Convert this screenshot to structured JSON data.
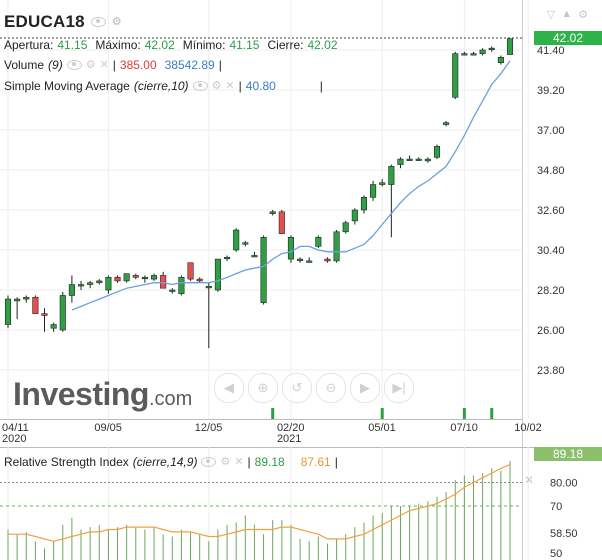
{
  "instrument": {
    "name": "EDUCA18"
  },
  "ohlc": {
    "open_label": "Apertura:",
    "open_value": "41.15",
    "high_label": "Máximo:",
    "high_value": "42.02",
    "low_label": "Mínimo:",
    "low_value": "41.15",
    "close_label": "Cierre:",
    "close_value": "42.02"
  },
  "volume": {
    "label": "Volume",
    "params": "(9)",
    "value1": "385.00",
    "value2": "38542.89"
  },
  "sma": {
    "label": "Simple Moving Average",
    "params": "(cierre,10)",
    "value": "40.80"
  },
  "rsi": {
    "label": "Relative Strength Index",
    "params": "(cierre,14,9)",
    "value1": "89.18",
    "value2": "87.61"
  },
  "price_badge": "42.02",
  "rsi_badge": "89.18",
  "y_ticks": [
    "41.40",
    "39.20",
    "37.00",
    "34.80",
    "32.60",
    "30.40",
    "28.20",
    "26.00",
    "23.80"
  ],
  "x_ticks": [
    {
      "label": "04/11",
      "sub": "2020"
    },
    {
      "label": "09/05",
      "sub": ""
    },
    {
      "label": "12/05",
      "sub": ""
    },
    {
      "label": "02/20",
      "sub": "2021"
    },
    {
      "label": "05/01",
      "sub": ""
    },
    {
      "label": "07/10",
      "sub": ""
    },
    {
      "label": "10/02",
      "sub": ""
    }
  ],
  "rsi_ticks": [
    "70",
    "58.50",
    "50"
  ],
  "rsi_top_tick": "80.00",
  "watermark": {
    "main": "Investing",
    "suffix": ".com"
  },
  "colors": {
    "up": "#2ea043",
    "down": "#e25050",
    "sma": "#6aa0e0",
    "rsi_line": "#f0a040",
    "rsi_bars": "#6aa857"
  },
  "chart_data": {
    "type": "candlestick",
    "ylim": [
      23.8,
      42.8
    ],
    "candles": [
      {
        "o": 26.3,
        "h": 27.9,
        "l": 26.1,
        "c": 27.7
      },
      {
        "o": 27.6,
        "h": 27.8,
        "l": 26.6,
        "c": 27.7
      },
      {
        "o": 27.7,
        "h": 27.9,
        "l": 27.5,
        "c": 27.8
      },
      {
        "o": 27.8,
        "h": 27.9,
        "l": 26.9,
        "c": 26.9
      },
      {
        "o": 26.9,
        "h": 27.2,
        "l": 25.9,
        "c": 26.8
      },
      {
        "o": 26.1,
        "h": 26.4,
        "l": 25.9,
        "c": 26.3
      },
      {
        "o": 26.0,
        "h": 28.1,
        "l": 25.9,
        "c": 27.9
      },
      {
        "o": 27.9,
        "h": 29.0,
        "l": 27.5,
        "c": 28.5
      },
      {
        "o": 28.5,
        "h": 28.7,
        "l": 28.2,
        "c": 28.5
      },
      {
        "o": 28.5,
        "h": 28.7,
        "l": 28.3,
        "c": 28.6
      },
      {
        "o": 28.6,
        "h": 28.8,
        "l": 28.5,
        "c": 28.7
      },
      {
        "o": 28.2,
        "h": 29.0,
        "l": 28.0,
        "c": 28.9
      },
      {
        "o": 28.9,
        "h": 29.0,
        "l": 28.6,
        "c": 28.7
      },
      {
        "o": 28.7,
        "h": 29.1,
        "l": 28.6,
        "c": 29.1
      },
      {
        "o": 29.0,
        "h": 29.1,
        "l": 28.8,
        "c": 28.9
      },
      {
        "o": 28.9,
        "h": 29.0,
        "l": 28.6,
        "c": 28.9
      },
      {
        "o": 28.8,
        "h": 29.1,
        "l": 28.7,
        "c": 29.0
      },
      {
        "o": 29.0,
        "h": 29.2,
        "l": 28.3,
        "c": 28.3
      },
      {
        "o": 28.2,
        "h": 28.3,
        "l": 28.0,
        "c": 28.2
      },
      {
        "o": 28.0,
        "h": 29.0,
        "l": 27.9,
        "c": 28.9
      },
      {
        "o": 29.7,
        "h": 29.7,
        "l": 28.7,
        "c": 28.8
      },
      {
        "o": 28.8,
        "h": 28.9,
        "l": 28.6,
        "c": 28.7
      },
      {
        "o": 28.4,
        "h": 28.6,
        "l": 25.0,
        "c": 28.4
      },
      {
        "o": 28.2,
        "h": 29.9,
        "l": 28.1,
        "c": 29.9
      },
      {
        "o": 30.0,
        "h": 30.1,
        "l": 29.8,
        "c": 30.0
      },
      {
        "o": 30.4,
        "h": 31.6,
        "l": 30.3,
        "c": 31.5
      },
      {
        "o": 30.8,
        "h": 30.9,
        "l": 30.6,
        "c": 30.8
      },
      {
        "o": 30.1,
        "h": 30.3,
        "l": 30.0,
        "c": 30.1
      },
      {
        "o": 27.5,
        "h": 31.2,
        "l": 27.4,
        "c": 31.1
      },
      {
        "o": 32.4,
        "h": 32.6,
        "l": 32.3,
        "c": 32.5
      },
      {
        "o": 32.5,
        "h": 32.6,
        "l": 31.3,
        "c": 31.3
      },
      {
        "o": 29.9,
        "h": 31.2,
        "l": 29.7,
        "c": 31.1
      },
      {
        "o": 29.9,
        "h": 30.0,
        "l": 29.7,
        "c": 29.9
      },
      {
        "o": 29.8,
        "h": 30.0,
        "l": 29.7,
        "c": 29.8
      },
      {
        "o": 30.6,
        "h": 31.2,
        "l": 30.5,
        "c": 31.1
      },
      {
        "o": 29.9,
        "h": 30.0,
        "l": 29.7,
        "c": 29.8
      },
      {
        "o": 29.8,
        "h": 31.5,
        "l": 29.7,
        "c": 31.4
      },
      {
        "o": 31.4,
        "h": 32.0,
        "l": 31.3,
        "c": 31.9
      },
      {
        "o": 32.0,
        "h": 32.7,
        "l": 31.8,
        "c": 32.6
      },
      {
        "o": 32.6,
        "h": 33.4,
        "l": 32.4,
        "c": 33.3
      },
      {
        "o": 33.3,
        "h": 34.2,
        "l": 33.1,
        "c": 34.0
      },
      {
        "o": 34.0,
        "h": 34.3,
        "l": 33.9,
        "c": 34.1
      },
      {
        "o": 34.0,
        "h": 35.1,
        "l": 31.1,
        "c": 35.0
      },
      {
        "o": 35.1,
        "h": 35.5,
        "l": 34.9,
        "c": 35.4
      },
      {
        "o": 35.4,
        "h": 35.6,
        "l": 35.3,
        "c": 35.4
      },
      {
        "o": 35.4,
        "h": 35.5,
        "l": 35.3,
        "c": 35.4
      },
      {
        "o": 35.3,
        "h": 35.5,
        "l": 35.2,
        "c": 35.4
      },
      {
        "o": 35.5,
        "h": 36.2,
        "l": 35.4,
        "c": 36.1
      },
      {
        "o": 37.3,
        "h": 37.5,
        "l": 37.2,
        "c": 37.4
      },
      {
        "o": 38.8,
        "h": 41.3,
        "l": 38.7,
        "c": 41.2
      },
      {
        "o": 41.2,
        "h": 41.3,
        "l": 41.1,
        "c": 41.2
      },
      {
        "o": 41.2,
        "h": 41.3,
        "l": 41.1,
        "c": 41.2
      },
      {
        "o": 41.2,
        "h": 41.5,
        "l": 41.1,
        "c": 41.4
      },
      {
        "o": 41.5,
        "h": 41.6,
        "l": 41.3,
        "c": 41.5
      },
      {
        "o": 40.7,
        "h": 41.1,
        "l": 40.6,
        "c": 41.0
      },
      {
        "o": 41.15,
        "h": 42.02,
        "l": 41.15,
        "c": 42.02
      }
    ],
    "sma": [
      null,
      null,
      null,
      null,
      null,
      null,
      null,
      27.1,
      27.3,
      27.5,
      27.7,
      27.9,
      28.1,
      28.3,
      28.4,
      28.5,
      28.6,
      28.6,
      28.5,
      28.6,
      28.6,
      28.6,
      28.6,
      28.7,
      28.9,
      29.1,
      29.3,
      29.4,
      29.5,
      29.9,
      30.2,
      30.3,
      30.6,
      30.6,
      30.4,
      30.3,
      30.3,
      30.3,
      30.5,
      30.7,
      31.2,
      31.8,
      32.4,
      33.0,
      33.5,
      33.9,
      34.2,
      34.6,
      35.0,
      35.8,
      36.7,
      37.7,
      38.6,
      39.5,
      40.1,
      40.8
    ],
    "rsi": [
      60,
      58,
      59,
      55,
      52,
      55,
      62,
      65,
      60,
      61,
      62,
      60,
      61,
      62,
      61,
      60,
      61,
      58,
      57,
      60,
      59,
      58,
      55,
      60,
      62,
      63,
      66,
      62,
      58,
      64,
      64,
      62,
      56,
      55,
      57,
      54,
      56,
      58,
      61,
      63,
      66,
      67,
      70,
      70,
      70,
      71,
      72,
      74,
      76,
      81,
      83,
      83,
      84,
      86,
      85,
      89.18
    ],
    "rsi_signal": [
      58,
      58,
      58,
      57,
      56,
      55,
      56,
      57,
      58,
      59,
      59,
      60,
      60,
      61,
      61,
      61,
      61,
      60,
      59,
      59,
      59,
      58,
      57,
      57,
      58,
      59,
      60,
      60,
      60,
      60,
      61,
      61,
      60,
      59,
      58,
      56,
      56,
      56,
      57,
      58,
      60,
      62,
      64,
      66,
      68,
      69,
      70,
      71,
      73,
      75,
      78,
      80,
      82,
      84,
      86,
      87.61
    ],
    "volume": [
      0,
      0,
      0,
      0,
      0,
      0,
      0,
      0,
      0,
      0,
      0,
      0,
      0,
      0,
      0,
      0,
      0,
      0,
      0,
      0,
      0,
      0,
      0,
      0,
      0,
      0,
      0,
      0,
      0,
      1,
      0,
      0,
      0,
      0,
      0,
      0,
      0,
      0,
      0,
      0,
      0,
      1,
      0,
      0,
      0,
      0,
      0,
      0,
      0,
      0,
      1,
      0,
      0,
      1,
      0,
      0
    ],
    "x_tick_index": [
      0,
      11,
      22,
      31,
      41,
      50,
      57
    ],
    "rsi_ylim": [
      45,
      85
    ]
  }
}
